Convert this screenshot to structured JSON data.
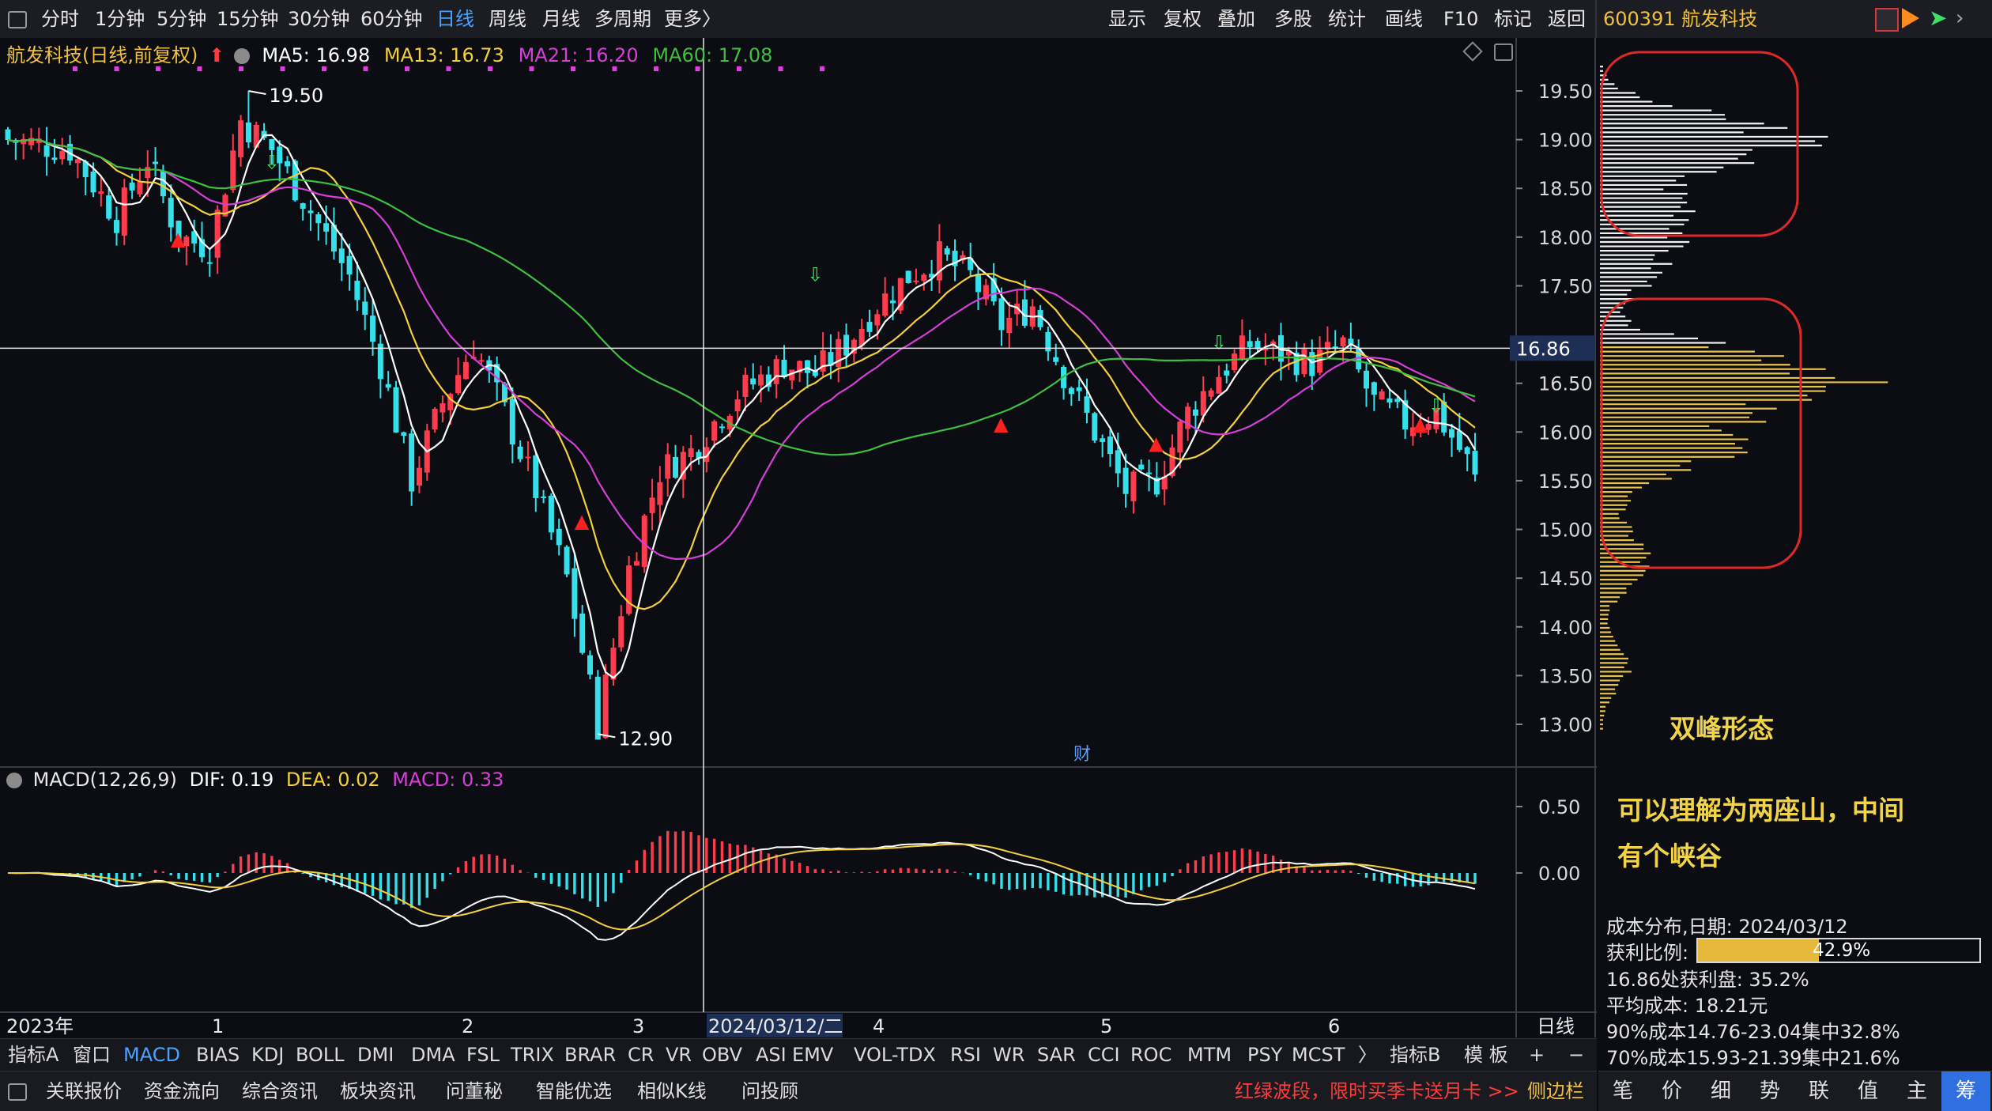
{
  "toolbar": {
    "periods": [
      "分时",
      "1分钟",
      "5分钟",
      "15分钟",
      "30分钟",
      "60分钟",
      "日线",
      "周线",
      "月线",
      "多周期",
      "更多〉"
    ],
    "active_period": "日线",
    "actions": [
      "显示",
      "复权",
      "叠加",
      "多股",
      "统计",
      "画线",
      "F10",
      "标记",
      "返回"
    ],
    "stock_code_name": "600391 航发科技"
  },
  "main_chart": {
    "legend_title": "航发科技(日线,前复权)",
    "ma5": "MA5: 16.98",
    "ma13": "MA13: 16.73",
    "ma21": "MA21: 16.20",
    "ma60": "MA60: 17.08",
    "high_label": "19.50",
    "low_label": "12.90",
    "crosshair_price": "16.86",
    "fin_marker": "财",
    "price_ticks": [
      "19.50",
      "19.00",
      "18.50",
      "18.00",
      "17.50",
      "16.50",
      "16.00",
      "15.50",
      "15.00",
      "14.50",
      "14.00",
      "13.50",
      "13.00"
    ],
    "colors": {
      "up": "#ff3b4e",
      "down": "#35e0ea",
      "ma5": "#ffffff",
      "ma13": "#f4cf3c",
      "ma21": "#d43fd6",
      "ma60": "#3fbf3f"
    }
  },
  "macd": {
    "title": "MACD(12,26,9)",
    "dif": "DIF: 0.19",
    "dea": "DEA: 0.02",
    "macd": "MACD: 0.33",
    "ticks": [
      "0.50",
      "0.00"
    ]
  },
  "date_axis": {
    "labels": [
      "2023年",
      "1",
      "2",
      "3",
      "2024/03/12/二",
      "4",
      "5",
      "6"
    ],
    "period_label": "日线"
  },
  "indicator_tabs": [
    "指标A",
    "窗口",
    "MACD",
    "BIAS",
    "KDJ",
    "BOLL",
    "DMI",
    "DMA",
    "FSL",
    "TRIX",
    "BRAR",
    "CR",
    "VR",
    "OBV",
    "ASI",
    "EMV",
    "VOL-TDX",
    "RSI",
    "WR",
    "SAR",
    "CCI",
    "ROC",
    "MTM",
    "PSY",
    "MCST",
    "〉",
    "指标B",
    "模 板",
    "+",
    "−"
  ],
  "active_indicator": "MACD",
  "bottom_bar": {
    "items": [
      "关联报价",
      "资金流向",
      "综合资讯",
      "板块资讯",
      "问董秘",
      "智能优选",
      "相似K线",
      "问投顾"
    ],
    "promo": "红绿波段，限时买季卡送月卡 >>",
    "side": "侧边栏"
  },
  "right_panel": {
    "annotation_title": "双峰形态",
    "annotation_line1": "可以理解为两座山，中间",
    "annotation_line2": "有个峡谷",
    "dist_date": "成本分布,日期:  2024/03/12",
    "profit_label": "获利比例:",
    "profit_value": "42.9%",
    "profit_ratio": 0.429,
    "profit_at": "16.86处获利盘: 35.2%",
    "avg_cost": "平均成本:  18.21元",
    "cost90": "90%成本14.76-23.04集中32.8%",
    "cost70": "70%成本15.93-21.39集中21.6%",
    "tabs": [
      "笔",
      "价",
      "细",
      "势",
      "联",
      "值",
      "主",
      "筹"
    ],
    "active_tab": "筹"
  }
}
